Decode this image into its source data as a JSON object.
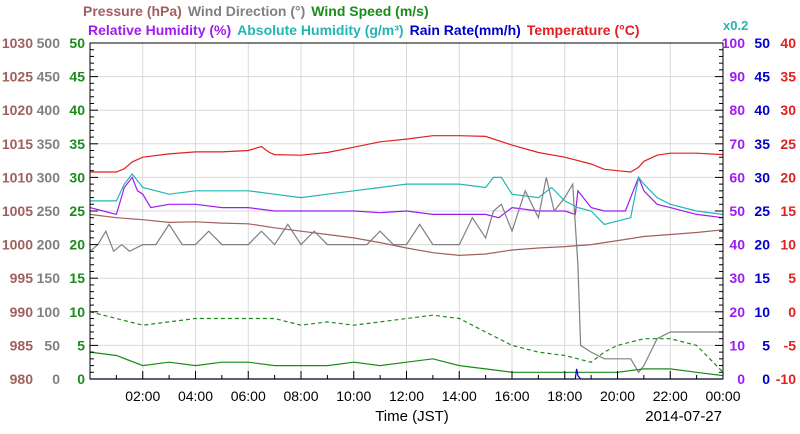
{
  "chart_data": {
    "type": "line",
    "date": "2014-07-27",
    "x_axis": {
      "label": "Time (JST)",
      "range": [
        0,
        24
      ],
      "ticks": [
        "02:00",
        "04:00",
        "06:00",
        "08:00",
        "10:00",
        "12:00",
        "14:00",
        "16:00",
        "18:00",
        "20:00",
        "22:00",
        "00:00"
      ]
    },
    "grid": true,
    "legend": [
      {
        "key": "pressure",
        "text": "Pressure (hPa)",
        "color": "#a0605e"
      },
      {
        "key": "wind_dir",
        "text": "Wind Direction (°)",
        "color": "#808080"
      },
      {
        "key": "wind_speed",
        "text": "Wind Speed (m/s)",
        "color": "#1a8c1a"
      },
      {
        "key": "rh",
        "text": "Relative Humidity (%)",
        "color": "#9f1cf0"
      },
      {
        "key": "ah",
        "text": "Absolute Humidity (g/m³)",
        "color": "#22b5b5"
      },
      {
        "key": "rain",
        "text": "Rain Rate(mm/h)",
        "color": "#0000cc"
      },
      {
        "key": "temp",
        "text": "Temperature (°C)",
        "color": "#e02020"
      }
    ],
    "ah_multiplier": "x0.2",
    "left_axes": [
      {
        "name": "Pressure (hPa)",
        "color": "#a0605e",
        "range": [
          980,
          1030
        ],
        "ticks": [
          "980",
          "985",
          "990",
          "995",
          "1000",
          "1005",
          "1010",
          "1015",
          "1020",
          "1025",
          "1030"
        ]
      },
      {
        "name": "Wind Direction (°)",
        "color": "#808080",
        "range": [
          0,
          500
        ],
        "ticks": [
          "0",
          "50",
          "100",
          "150",
          "200",
          "250",
          "300",
          "350",
          "400",
          "450",
          "500"
        ]
      },
      {
        "name": "Wind Speed (m/s)",
        "color": "#1a8c1a",
        "range": [
          0,
          50
        ],
        "ticks": [
          "0",
          "5",
          "10",
          "15",
          "20",
          "25",
          "30",
          "35",
          "40",
          "45",
          "50"
        ]
      }
    ],
    "right_axes": [
      {
        "name": "Relative Humidity (%)",
        "color": "#9f1cf0",
        "range": [
          0,
          100
        ],
        "ticks": [
          "0",
          "10",
          "20",
          "30",
          "40",
          "50",
          "60",
          "70",
          "80",
          "90",
          "100"
        ]
      },
      {
        "name": "Rain Rate (mm/h)",
        "color": "#0000cc",
        "range": [
          0,
          50
        ],
        "ticks": [
          "0",
          "5",
          "10",
          "15",
          "20",
          "25",
          "30",
          "35",
          "40",
          "45",
          "50"
        ]
      },
      {
        "name": "Temperature (°C)",
        "color": "#e02020",
        "range": [
          -10,
          40
        ],
        "ticks": [
          "-10",
          "-5",
          "0",
          "5",
          "10",
          "15",
          "20",
          "25",
          "30",
          "35",
          "40"
        ]
      }
    ],
    "series": [
      {
        "name": "Temperature",
        "color": "#e02020",
        "axis": "temp",
        "x": [
          0,
          0.5,
          1,
          1.3,
          1.6,
          2,
          3,
          4,
          5,
          6,
          6.5,
          6.8,
          7,
          8,
          9,
          10,
          11,
          12,
          13,
          14,
          15,
          16,
          17,
          18,
          19,
          19.5,
          20,
          20.5,
          20.8,
          21,
          21.5,
          22,
          23,
          24
        ],
        "y": [
          20.8,
          20.8,
          20.8,
          21.3,
          22.3,
          23,
          23.5,
          23.8,
          23.8,
          24,
          24.6,
          23.7,
          23.4,
          23.3,
          23.7,
          24.5,
          25.3,
          25.7,
          26.2,
          26.2,
          26.1,
          24.8,
          23.7,
          23,
          22,
          21.2,
          21,
          20.8,
          21.5,
          22.4,
          23.3,
          23.6,
          23.6,
          23.4
        ]
      },
      {
        "name": "Relative Humidity",
        "color": "#9f1cf0",
        "axis": "rh",
        "x": [
          0,
          0.5,
          1,
          1.3,
          1.6,
          1.8,
          2,
          2.3,
          3,
          4,
          5,
          6,
          7,
          8,
          9,
          10,
          11,
          12,
          13,
          14,
          15,
          15.5,
          16,
          17,
          18,
          18.4,
          18.5,
          19,
          19.5,
          20,
          20.3,
          20.6,
          20.8,
          21,
          21.5,
          22,
          23,
          24
        ],
        "y": [
          51,
          50,
          49,
          57,
          60,
          56,
          55,
          51,
          52,
          52,
          51,
          51,
          50,
          50,
          50,
          50,
          49.5,
          50,
          49,
          49,
          49,
          48,
          51,
          50,
          50,
          49,
          56,
          51,
          50,
          50,
          50,
          56,
          60,
          56,
          52,
          51,
          49,
          48
        ]
      },
      {
        "name": "Absolute Humidity (x0.2)",
        "color": "#22b5b5",
        "axis": "rh",
        "x": [
          0,
          0.5,
          1,
          1.3,
          1.6,
          2,
          3,
          4,
          5,
          6,
          7,
          8,
          9,
          10,
          11,
          12,
          13,
          14,
          15,
          15.3,
          15.6,
          16,
          17,
          17.5,
          18,
          18.5,
          19,
          19.5,
          20,
          20.5,
          20.8,
          21,
          21.5,
          22,
          23,
          24
        ],
        "y": [
          53,
          53,
          53,
          58,
          61,
          57,
          55,
          56,
          56,
          56,
          55,
          54,
          55,
          56,
          57,
          58,
          58,
          58,
          57,
          60,
          60,
          55,
          54,
          57,
          53,
          51,
          50,
          46,
          47,
          48,
          60,
          58,
          54,
          52,
          50,
          49
        ]
      },
      {
        "name": "Pressure",
        "color": "#a0605e",
        "axis": "pressure",
        "x": [
          0,
          1,
          2,
          3,
          4,
          5,
          6,
          7,
          8,
          9,
          10,
          11,
          12,
          13,
          14,
          15,
          16,
          17,
          18,
          19,
          20,
          21,
          22,
          23,
          24
        ],
        "y": [
          1004.5,
          1004,
          1003.7,
          1003.3,
          1003.4,
          1003.2,
          1003.1,
          1002.5,
          1002,
          1001.5,
          1001,
          1000.3,
          999.5,
          998.8,
          998.4,
          998.6,
          999.2,
          999.5,
          999.7,
          1000,
          1000.6,
          1001.2,
          1001.5,
          1001.8,
          1002.2
        ]
      },
      {
        "name": "Wind Direction",
        "color": "#808080",
        "axis": "wind_dir",
        "x": [
          0,
          0.3,
          0.6,
          0.9,
          1.2,
          1.5,
          2,
          2.5,
          3,
          3.5,
          4,
          4.5,
          5,
          5.5,
          6,
          6.5,
          7,
          7.5,
          8,
          8.5,
          9,
          9.5,
          10,
          10.5,
          11,
          11.5,
          12,
          12.5,
          13,
          13.5,
          14,
          14.5,
          15,
          15.3,
          15.6,
          16,
          16.5,
          17,
          17.3,
          17.6,
          18,
          18.3,
          18.5,
          18.6,
          19,
          19.5,
          20,
          20.5,
          20.8,
          21,
          21.5,
          22,
          23,
          24
        ],
        "y": [
          190,
          200,
          220,
          190,
          200,
          190,
          200,
          200,
          230,
          200,
          200,
          220,
          200,
          200,
          200,
          220,
          200,
          230,
          200,
          220,
          200,
          200,
          200,
          200,
          220,
          200,
          200,
          230,
          200,
          200,
          200,
          240,
          210,
          250,
          260,
          220,
          280,
          240,
          300,
          250,
          270,
          290,
          170,
          50,
          40,
          30,
          30,
          30,
          10,
          20,
          60,
          70,
          70,
          70
        ]
      },
      {
        "name": "Wind Speed (max)",
        "color": "#1a8c1a",
        "axis": "wind_speed",
        "x": [
          0,
          1,
          2,
          3,
          4,
          5,
          6,
          7,
          8,
          9,
          10,
          11,
          12,
          13,
          14,
          15,
          16,
          17,
          18,
          19,
          19.5,
          20,
          21,
          22,
          23,
          24
        ],
        "y": [
          10,
          9,
          8,
          8.5,
          9,
          9,
          9,
          9,
          8,
          8.5,
          8,
          8.5,
          9,
          9.5,
          9,
          7,
          5,
          4,
          3.5,
          2.5,
          4,
          5,
          6,
          6,
          5,
          1
        ]
      },
      {
        "name": "Wind Speed",
        "color": "#1a8c1a",
        "axis": "wind_speed",
        "x": [
          0,
          1,
          2,
          3,
          4,
          5,
          6,
          7,
          8,
          9,
          10,
          11,
          12,
          13,
          14,
          15,
          16,
          17,
          18,
          19,
          20,
          21,
          22,
          23,
          24
        ],
        "y": [
          4,
          3.5,
          2,
          2.5,
          2,
          2.5,
          2.5,
          2,
          2,
          2,
          2.5,
          2,
          2.5,
          3,
          2,
          1.5,
          1,
          1,
          1,
          1,
          1,
          1.5,
          1.5,
          1,
          0.5
        ]
      },
      {
        "name": "Rain Rate",
        "color": "#0000cc",
        "axis": "rain",
        "x": [
          0,
          18.4,
          18.45,
          18.5,
          18.6,
          24
        ],
        "y": [
          0,
          0,
          1.5,
          0.5,
          0,
          0
        ]
      }
    ]
  }
}
